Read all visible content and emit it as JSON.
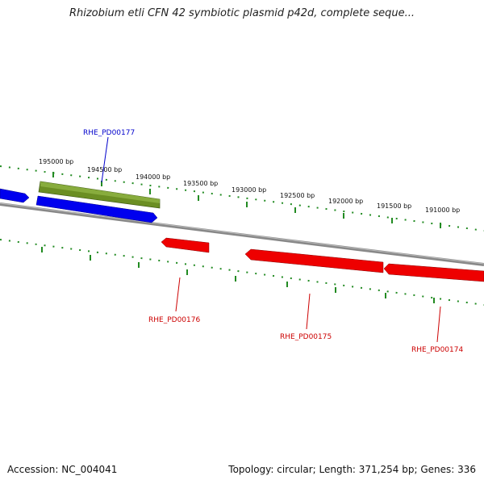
{
  "title": "Rhizobium etli CFN 42 symbiotic plasmid p42d, complete seque...",
  "footer": {
    "accession": "Accession: NC_004041",
    "summary": "Topology: circular; Length: 371,254 bp; Genes: 336"
  },
  "colors": {
    "forward_gene": "#0000ee",
    "reverse_gene": "#ee0000",
    "highlight_gene": "#6b8e23",
    "backbone": "#888888",
    "ticks": "#228b22"
  },
  "ruler_ticks": [
    {
      "label": "195000 bp",
      "pos": 195000
    },
    {
      "label": "194500 bp",
      "pos": 194500
    },
    {
      "label": "194000 bp",
      "pos": 194000
    },
    {
      "label": "193500 bp",
      "pos": 193500
    },
    {
      "label": "193000 bp",
      "pos": 193000
    },
    {
      "label": "192500 bp",
      "pos": 192500
    },
    {
      "label": "192000 bp",
      "pos": 192000
    },
    {
      "label": "191500 bp",
      "pos": 191500
    },
    {
      "label": "191000 bp",
      "pos": 191000
    }
  ],
  "gene_labels": {
    "pd00177": "RHE_PD00177",
    "pd00176": "RHE_PD00176",
    "pd00175": "RHE_PD00175",
    "pd00174": "RHE_PD00174"
  }
}
